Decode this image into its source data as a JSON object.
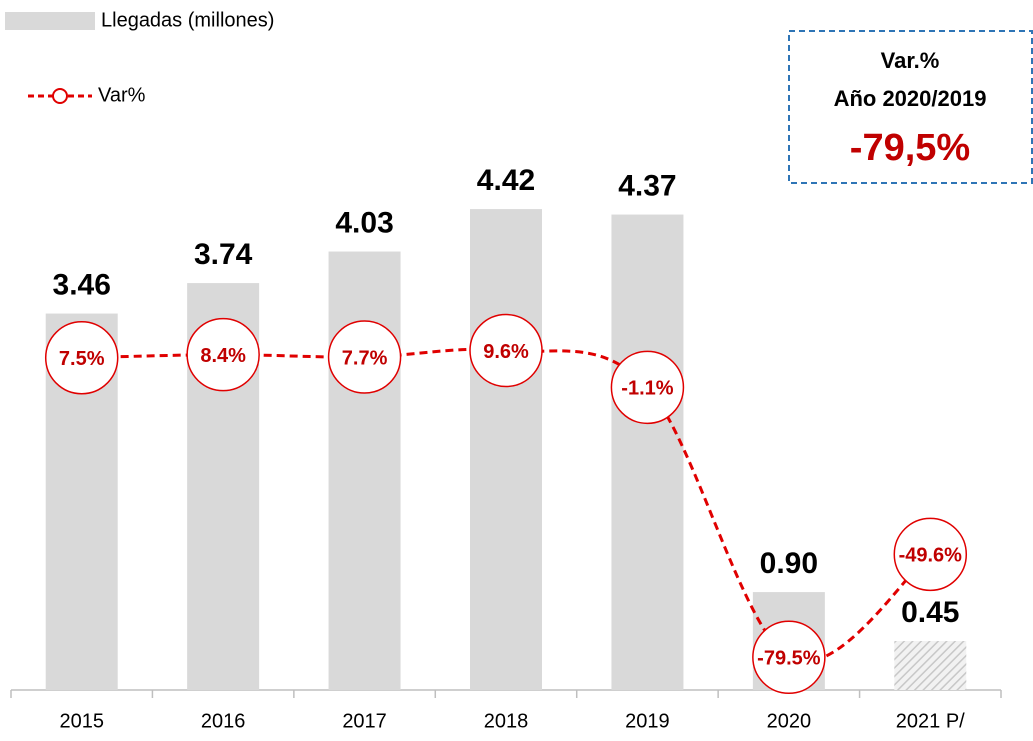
{
  "chart_data": {
    "type": "bar_line",
    "categories": [
      "2015",
      "2016",
      "2017",
      "2018",
      "2019",
      "2020",
      "2021 P/"
    ],
    "series": [
      {
        "name": "Llegadas (millones)",
        "type": "bar",
        "color": "#d9d9d9",
        "values": [
          3.46,
          3.74,
          4.03,
          4.42,
          4.37,
          0.9,
          0.45
        ],
        "value_labels": [
          "3.46",
          "3.74",
          "4.03",
          "4.42",
          "4.37",
          "0.90",
          "0.45"
        ],
        "hatched": [
          6
        ]
      },
      {
        "name": "Var%",
        "type": "line",
        "axis": "y2",
        "color": "#e00000",
        "values": [
          7.5,
          8.4,
          7.7,
          9.6,
          -1.1,
          -79.5,
          -49.6
        ],
        "value_labels": [
          "7.5%",
          "8.4%",
          "7.7%",
          "9.6%",
          "-1.1%",
          "-79.5%",
          "-49.6%"
        ]
      }
    ],
    "ylim": [
      0,
      5
    ],
    "y2lim": [
      -89,
      69
    ],
    "annotation": {
      "title": "Var.%",
      "subtitle": "Año 2020/2019",
      "value": "-79,5%"
    }
  }
}
